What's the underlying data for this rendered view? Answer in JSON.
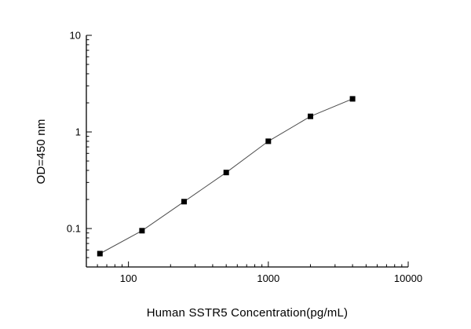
{
  "figure": {
    "background": "#ffffff"
  },
  "chart_data": {
    "type": "line",
    "title": "",
    "xlabel": "Human SSTR5 Concentration(pg/mL)",
    "ylabel": "OD=450 nm",
    "xscale": "log",
    "yscale": "log",
    "xlim": [
      50,
      10000
    ],
    "ylim": [
      0.04,
      10
    ],
    "grid": false,
    "legend": "none",
    "marker": "filled-square",
    "series": [
      {
        "name": "standard-curve",
        "x": [
          62.5,
          125,
          250,
          500,
          1000,
          2000,
          4000
        ],
        "y": [
          0.055,
          0.095,
          0.19,
          0.38,
          0.8,
          1.45,
          2.2
        ]
      }
    ],
    "x_major_ticks": [
      {
        "value": 100,
        "label": "100"
      },
      {
        "value": 1000,
        "label": "1000"
      },
      {
        "value": 10000,
        "label": "10000"
      }
    ],
    "y_major_ticks": [
      {
        "value": 0.1,
        "label": "0.1"
      },
      {
        "value": 1,
        "label": "1"
      },
      {
        "value": 10,
        "label": "10"
      }
    ],
    "colors": {
      "marker": "#000000",
      "line": "#4d4d4d",
      "axis": "#000000",
      "text": "#000000"
    }
  }
}
